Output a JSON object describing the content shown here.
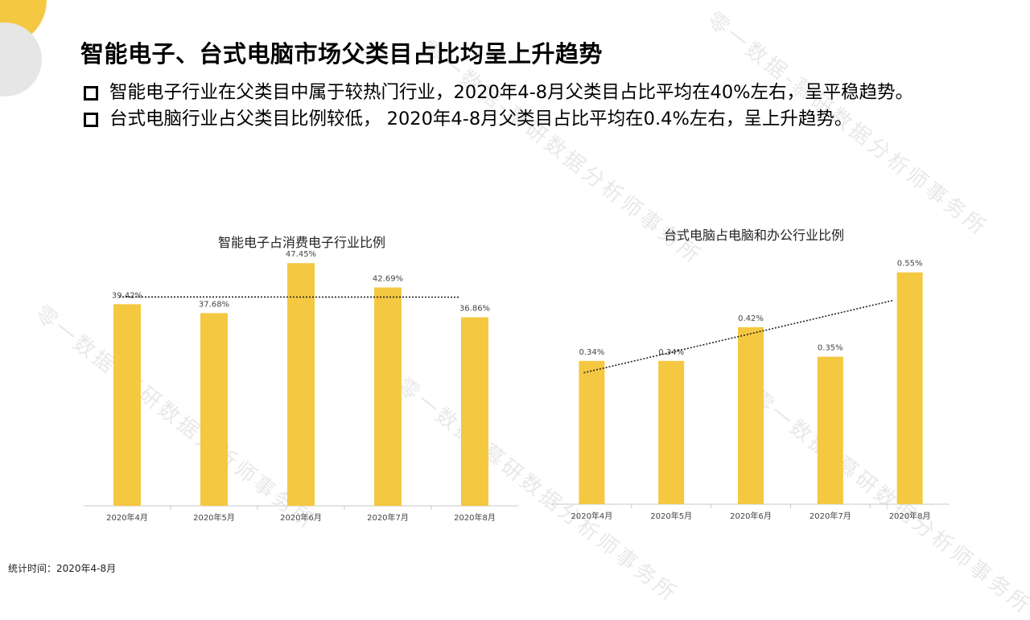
{
  "title": "智能电子、台式电脑市场父类目占比均呈上升趋势",
  "bullets": [
    "智能电子行业在父类目中属于较热门行业，2020年4-8月父类目占比平均在40%左右，呈平稳趋势。",
    "台式电脑行业占父类目比例较低， 2020年4-8月父类目占比平均在0.4%左右，呈上升趋势。"
  ],
  "watermark": "零一数据-慕研数据分析师事务所",
  "footnote": "统计时间：2020年4-8月",
  "colors": {
    "bar": "#f5c842",
    "accent_yellow": "#f5c842",
    "accent_gray": "#e6e6e6"
  },
  "chart_data": [
    {
      "type": "bar",
      "title": "智能电子占消费电子行业比例",
      "categories": [
        "2020年4月",
        "2020年5月",
        "2020年6月",
        "2020年7月",
        "2020年8月"
      ],
      "values": [
        39.42,
        37.68,
        47.45,
        42.69,
        36.86
      ],
      "labels": [
        "39.42%",
        "37.68%",
        "47.45%",
        "42.69%",
        "36.86%"
      ],
      "ylim": [
        0,
        50
      ],
      "trendline": "dotted linear"
    },
    {
      "type": "bar",
      "title": "台式电脑占电脑和办公行业比例",
      "categories": [
        "2020年4月",
        "2020年5月",
        "2020年6月",
        "2020年7月",
        "2020年8月"
      ],
      "values": [
        0.34,
        0.34,
        0.42,
        0.35,
        0.55
      ],
      "labels": [
        "0.34%",
        "0.34%",
        "0.42%",
        "0.35%",
        "0.55%"
      ],
      "ylim": [
        0,
        0.58
      ],
      "trendline": "dotted linear"
    }
  ]
}
